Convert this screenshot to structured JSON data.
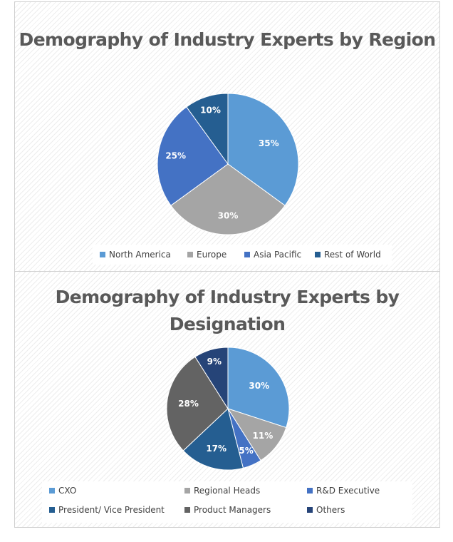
{
  "chart_data": [
    {
      "type": "pie",
      "title": "Demography of Industry Experts by Region",
      "categories": [
        "North America",
        "Europe",
        "Asia Pacific",
        "Rest of World"
      ],
      "values": [
        35,
        30,
        25,
        10
      ],
      "labels": [
        "35%",
        "30%",
        "25%",
        "10%"
      ],
      "colors": [
        "#5B9BD5",
        "#A5A5A5",
        "#4472C4",
        "#255E91"
      ],
      "legend": "bottom"
    },
    {
      "type": "pie",
      "title": "Demography of Industry Experts by Designation",
      "categories": [
        "CXO",
        "Regional Heads",
        "R&D Executive",
        "President/ Vice President",
        "Product Managers",
        "Others"
      ],
      "values": [
        30,
        11,
        5,
        17,
        28,
        9
      ],
      "labels": [
        "30%",
        "11%",
        "5%",
        "17%",
        "28%",
        "9%"
      ],
      "colors": [
        "#5B9BD5",
        "#A5A5A5",
        "#4472C4",
        "#255E91",
        "#636363",
        "#264478"
      ],
      "legend": "bottom"
    }
  ]
}
